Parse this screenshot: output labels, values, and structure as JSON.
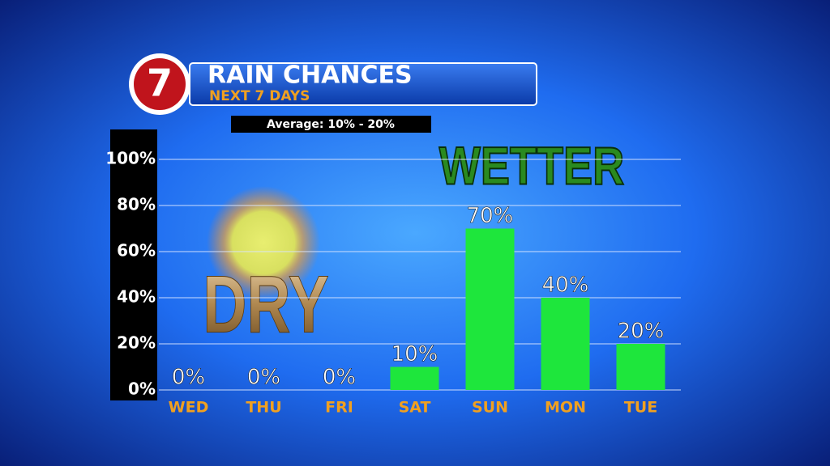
{
  "chart_data": {
    "type": "bar",
    "logo": "7",
    "title": "RAIN CHANCES",
    "subtitle": "NEXT 7 DAYS",
    "annotations": [
      "Average: 10% - 20%",
      "DRY",
      "WETTER"
    ],
    "categories": [
      "WED",
      "THU",
      "FRI",
      "SAT",
      "SUN",
      "MON",
      "TUE"
    ],
    "values": [
      0,
      0,
      0,
      10,
      70,
      40,
      20
    ],
    "value_labels": [
      "0%",
      "0%",
      "0%",
      "10%",
      "70%",
      "40%",
      "20%"
    ],
    "color": "#1ee63c",
    "ylim": [
      0,
      100
    ],
    "yticks": [
      {
        "value": 0,
        "label": "0%"
      },
      {
        "value": 20,
        "label": "20%"
      },
      {
        "value": 40,
        "label": "40%"
      },
      {
        "value": 60,
        "label": "60%"
      },
      {
        "value": 80,
        "label": "80%"
      },
      {
        "value": 100,
        "label": "100%"
      }
    ],
    "grid": true
  }
}
